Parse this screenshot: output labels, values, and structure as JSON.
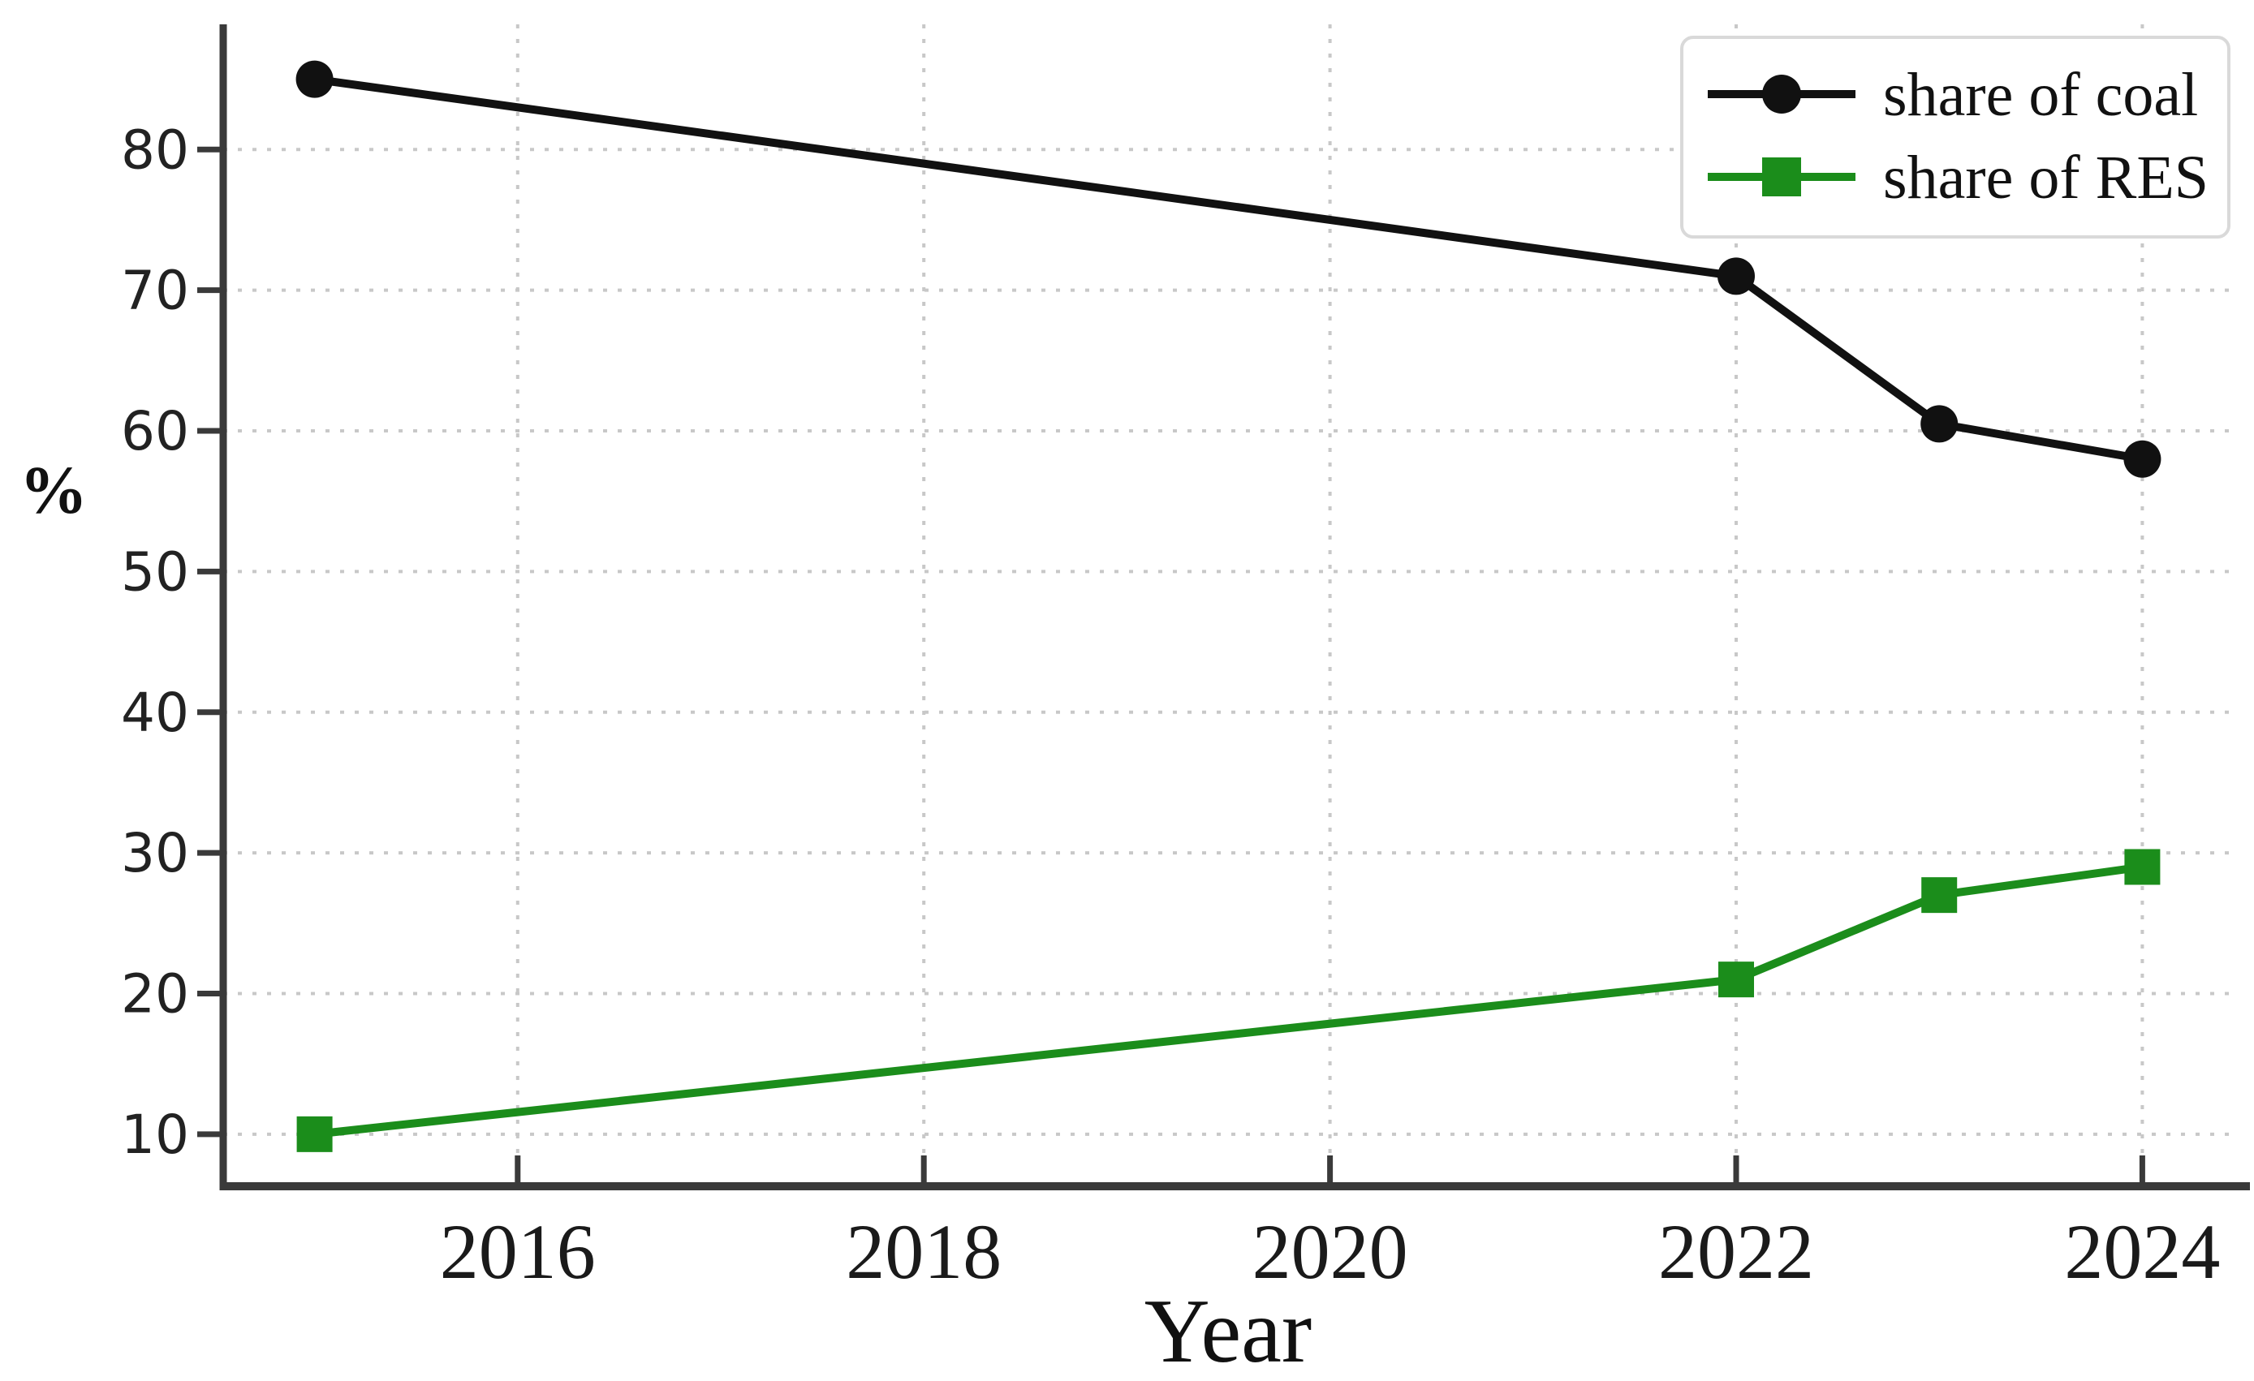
{
  "page": {
    "background": "#ffffff"
  },
  "chart_data": {
    "type": "line",
    "title": "",
    "xlabel": "Year",
    "ylabel": "%",
    "x_ticks": [
      2016,
      2018,
      2020,
      2022,
      2024
    ],
    "y_ticks": [
      10,
      20,
      30,
      40,
      50,
      60,
      70,
      80
    ],
    "xlim": [
      2014.55,
      2024.45
    ],
    "ylim": [
      6.3,
      88.9
    ],
    "grid": "dotted both axes",
    "legend_position": "top-right",
    "series": [
      {
        "name": "share of coal",
        "x": [
          2015,
          2022,
          2023,
          2024
        ],
        "values": [
          85,
          71,
          60.5,
          58
        ],
        "color": "#111111",
        "marker": "circle"
      },
      {
        "name": "share of RES",
        "x": [
          2015,
          2022,
          2023,
          2024
        ],
        "values": [
          10,
          21,
          27,
          29
        ],
        "color": "#1b8d1b",
        "marker": "square"
      }
    ],
    "colors": {
      "grid": "#c8c8c8",
      "spine": "#3a3a3a",
      "tick_label": "#1a1a1a",
      "legend_border": "#d9d9d9",
      "legend_background": "#ffffff"
    }
  }
}
